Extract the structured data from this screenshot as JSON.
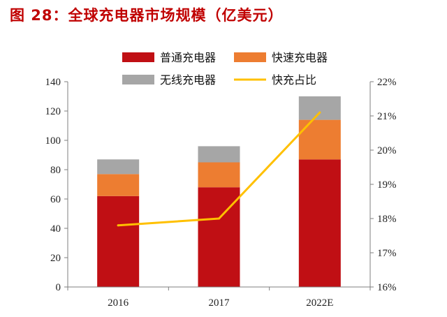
{
  "title": "图 28：全球充电器市场规模（亿美元）",
  "chart_data": {
    "type": "bar",
    "stacked": true,
    "categories": [
      "2016",
      "2017",
      "2022E"
    ],
    "series": [
      {
        "name": "普通充电器",
        "values": [
          62,
          68,
          87
        ],
        "color": "#c00f14"
      },
      {
        "name": "快速充电器",
        "values": [
          15,
          17,
          27
        ],
        "color": "#ed7d31"
      },
      {
        "name": "无线充电器",
        "values": [
          10,
          11,
          16
        ],
        "color": "#a6a6a6"
      }
    ],
    "line_series": {
      "name": "快充占比",
      "values": [
        17.8,
        18.0,
        21.1
      ],
      "color": "#ffc000",
      "axis": "right"
    },
    "ylim": [
      0,
      140
    ],
    "yticks": [
      "0",
      "20",
      "40",
      "60",
      "80",
      "100",
      "120",
      "140"
    ],
    "y2lim": [
      16,
      22
    ],
    "y2ticks": [
      "16%",
      "17%",
      "18%",
      "19%",
      "20%",
      "21%",
      "22%"
    ],
    "legend_position": "top"
  }
}
